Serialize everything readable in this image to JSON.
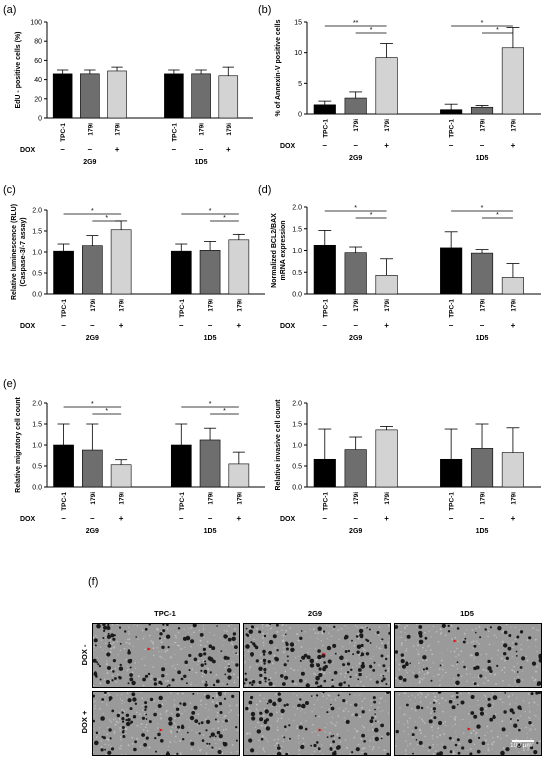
{
  "panels": {
    "a": {
      "letter": "(a)"
    },
    "b": {
      "letter": "(b)"
    },
    "c": {
      "letter": "(c)"
    },
    "d": {
      "letter": "(d)"
    },
    "e": {
      "letter": "(e)"
    },
    "f": {
      "letter": "(f)"
    }
  },
  "colors": {
    "tpc1": "#000000",
    "179i": "#6e6e6e",
    "179i_dox": "#d3d3d3"
  },
  "chart_data": [
    {
      "id": "a",
      "type": "bar",
      "ylabel": "EdU - positive cells (%)",
      "ylim": [
        0,
        100
      ],
      "yticks": [
        0,
        20,
        40,
        60,
        80,
        100
      ],
      "groups": [
        "2G9",
        "1D5"
      ],
      "categories": [
        "TPC-1",
        "179i",
        "179i"
      ],
      "dox_label": "DOX",
      "dox": [
        "–",
        "–",
        "+"
      ],
      "values": [
        [
          46,
          46,
          49
        ],
        [
          46,
          46,
          44
        ]
      ],
      "errors": [
        [
          4,
          4,
          4
        ],
        [
          4,
          4,
          9
        ]
      ],
      "significance": []
    },
    {
      "id": "b",
      "type": "bar",
      "ylabel": "% of Annexin-V positive cells",
      "ylim": [
        0,
        15
      ],
      "yticks": [
        0,
        5,
        10,
        15
      ],
      "groups": [
        "2G9",
        "1D5"
      ],
      "categories": [
        "TPC-1",
        "179i",
        "179i"
      ],
      "dox_label": "DOX",
      "dox": [
        "–",
        "–",
        "+"
      ],
      "values": [
        [
          1.5,
          2.6,
          9.2
        ],
        [
          0.7,
          1.1,
          10.8
        ]
      ],
      "errors": [
        [
          0.6,
          1.0,
          2.3
        ],
        [
          0.9,
          0.3,
          3.3
        ]
      ],
      "significance": [
        {
          "group": 0,
          "from": 0,
          "to": 2,
          "label": "**",
          "level": 2
        },
        {
          "group": 0,
          "from": 1,
          "to": 2,
          "label": "*",
          "level": 1
        },
        {
          "group": 1,
          "from": 0,
          "to": 2,
          "label": "*",
          "level": 2
        },
        {
          "group": 1,
          "from": 1,
          "to": 2,
          "label": "*",
          "level": 1
        }
      ]
    },
    {
      "id": "c",
      "type": "bar",
      "ylabel": "Relative luminescence (RLU)\n(Caspase-3/-7 assay)",
      "ylim": [
        0,
        2.0
      ],
      "yticks": [
        "0.0",
        "0.5",
        "1.0",
        "1.5",
        "2.0"
      ],
      "groups": [
        "2G9",
        "1D5"
      ],
      "categories": [
        "TPC-1",
        "179i",
        "179i"
      ],
      "dox_label": "DOX",
      "dox": [
        "–",
        "–",
        "+"
      ],
      "values": [
        [
          1.02,
          1.15,
          1.53
        ],
        [
          1.02,
          1.04,
          1.29
        ]
      ],
      "errors": [
        [
          0.17,
          0.24,
          0.21
        ],
        [
          0.17,
          0.21,
          0.13
        ]
      ],
      "significance": [
        {
          "group": 0,
          "from": 0,
          "to": 2,
          "label": "*",
          "level": 2
        },
        {
          "group": 0,
          "from": 1,
          "to": 2,
          "label": "*",
          "level": 1
        },
        {
          "group": 1,
          "from": 0,
          "to": 2,
          "label": "*",
          "level": 2
        },
        {
          "group": 1,
          "from": 1,
          "to": 2,
          "label": "*",
          "level": 1
        }
      ]
    },
    {
      "id": "d",
      "type": "bar",
      "ylabel": "Normalized BCL2/BAX\nmRNA expression",
      "ylim": [
        0,
        2.0
      ],
      "yticks": [
        "0.0",
        "0.5",
        "1.0",
        "1.5",
        "2.0"
      ],
      "groups": [
        "2G9",
        "1D5"
      ],
      "categories": [
        "TPC-1",
        "179i",
        "179i"
      ],
      "dox_label": "DOX",
      "dox": [
        "–",
        "–",
        "+"
      ],
      "values": [
        [
          1.12,
          0.95,
          0.43
        ],
        [
          1.06,
          0.94,
          0.38
        ]
      ],
      "errors": [
        [
          0.34,
          0.13,
          0.38
        ],
        [
          0.37,
          0.08,
          0.32
        ]
      ],
      "significance": [
        {
          "group": 0,
          "from": 0,
          "to": 2,
          "label": "*",
          "level": 2
        },
        {
          "group": 0,
          "from": 1,
          "to": 2,
          "label": "*",
          "level": 1
        },
        {
          "group": 1,
          "from": 0,
          "to": 2,
          "label": "*",
          "level": 2
        },
        {
          "group": 1,
          "from": 1,
          "to": 2,
          "label": "*",
          "level": 1
        }
      ]
    },
    {
      "id": "e1",
      "type": "bar",
      "ylabel": "Relative migratory cell count",
      "ylim": [
        0,
        2.0
      ],
      "yticks": [
        "0.0",
        "0.5",
        "1.0",
        "1.5",
        "2.0"
      ],
      "groups": [
        "2G9",
        "1D5"
      ],
      "categories": [
        "TPC-1",
        "179i",
        "179i"
      ],
      "dox_label": "DOX",
      "dox": [
        "–",
        "–",
        "+"
      ],
      "values": [
        [
          1.0,
          0.88,
          0.53
        ],
        [
          1.0,
          1.12,
          0.55
        ]
      ],
      "errors": [
        [
          0.5,
          0.62,
          0.12
        ],
        [
          0.5,
          0.28,
          0.28
        ]
      ],
      "significance": [
        {
          "group": 0,
          "from": 0,
          "to": 2,
          "label": "*",
          "level": 2
        },
        {
          "group": 0,
          "from": 1,
          "to": 2,
          "label": "*",
          "level": 1
        },
        {
          "group": 1,
          "from": 0,
          "to": 2,
          "label": "*",
          "level": 2
        },
        {
          "group": 1,
          "from": 1,
          "to": 2,
          "label": "*",
          "level": 1
        }
      ]
    },
    {
      "id": "e2",
      "type": "bar",
      "ylabel": "Relative invasive cell count",
      "ylim": [
        0,
        2.0
      ],
      "yticks": [
        "0.0",
        "0.5",
        "1.0",
        "1.5",
        "2.0"
      ],
      "groups": [
        "2G9",
        "1D5"
      ],
      "categories": [
        "TPC-1",
        "179i",
        "179i"
      ],
      "dox_label": "DOX",
      "dox": [
        "–",
        "–",
        "+"
      ],
      "values": [
        [
          0.66,
          0.89,
          1.36
        ],
        [
          0.66,
          0.92,
          0.82
        ]
      ],
      "errors": [
        [
          0.72,
          0.3,
          0.08
        ],
        [
          0.72,
          0.58,
          0.59
        ]
      ],
      "significance": []
    }
  ],
  "micrographs": {
    "columns": [
      "TPC-1",
      "2G9",
      "1D5"
    ],
    "rows": [
      "DOX -",
      "DOX +"
    ],
    "scale_bar": "100 µm"
  }
}
